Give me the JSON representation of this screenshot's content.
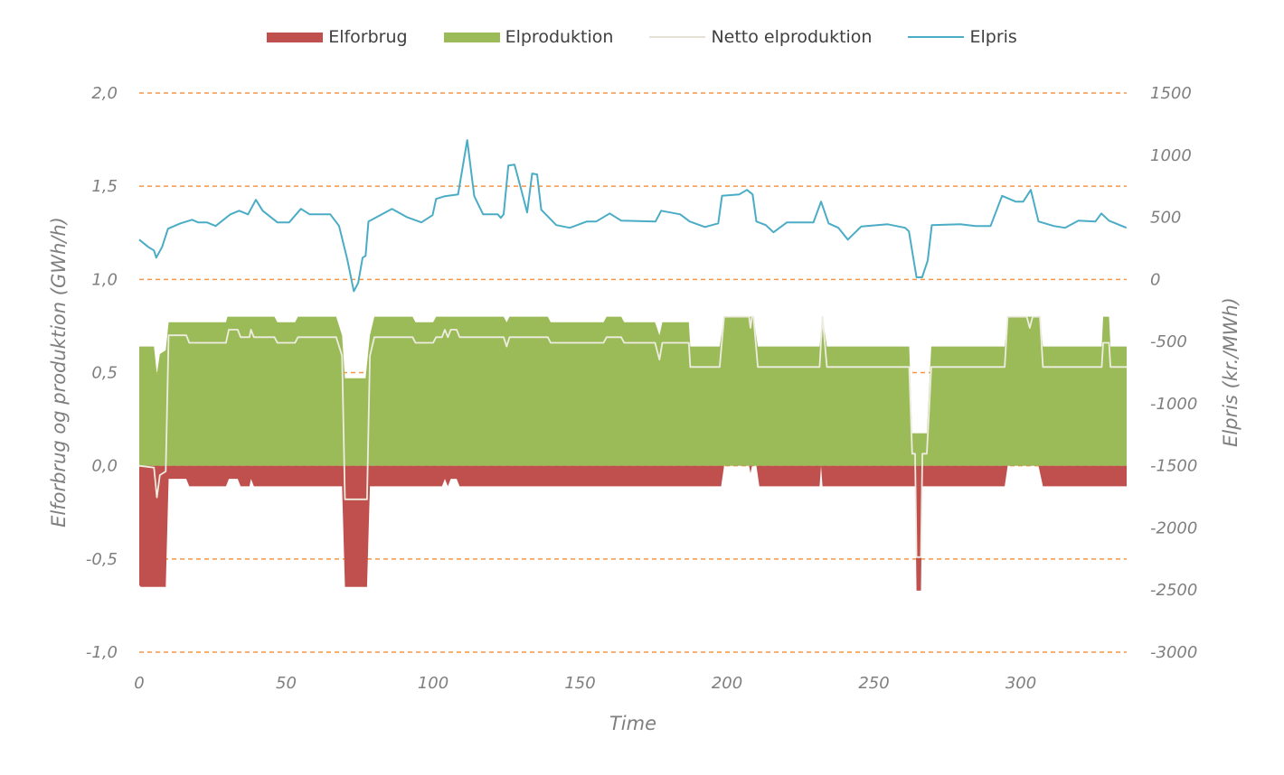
{
  "chart_data": {
    "type": "area",
    "xlabel": "Time",
    "ylabel": "Elforbrug og produktion (GWh/h)",
    "y2label": "Elpris (kr./MWh)",
    "xlim": [
      0,
      336
    ],
    "ylim": [
      -1.0,
      2.0
    ],
    "y2lim": [
      -3000,
      1500
    ],
    "x_ticks": [
      0,
      50,
      100,
      150,
      200,
      250,
      300
    ],
    "x_tick_labels": [
      "0",
      "50",
      "100",
      "150",
      "200",
      "250",
      "300"
    ],
    "y_ticks": [
      2.0,
      1.5,
      1.0,
      0.5,
      0.0,
      -0.5,
      -1.0
    ],
    "y_tick_labels": [
      "2,0",
      "1,5",
      "1,0",
      "0,5",
      "0,0",
      "-0,5",
      "-1,0"
    ],
    "y2_ticks": [
      1500,
      1000,
      500,
      0,
      -500,
      -1000,
      -1500,
      -2000,
      -2500,
      -3000
    ],
    "y2_tick_labels": [
      "1500",
      "1000",
      "500",
      "0",
      "-500",
      "-1000",
      "-1500",
      "-2000",
      "-2500",
      "-3000"
    ],
    "grid": true,
    "grid_color": "#f79646",
    "legend_position": "top",
    "series": [
      {
        "name": "Elforbrug",
        "kind": "area",
        "axis": "left",
        "color": "#c0504d",
        "points": [
          [
            0,
            -0.64
          ],
          [
            0.5,
            -0.65
          ],
          [
            9,
            -0.65
          ],
          [
            10,
            -0.07
          ],
          [
            16,
            -0.07
          ],
          [
            17,
            -0.11
          ],
          [
            29.5,
            -0.11
          ],
          [
            30.5,
            -0.07
          ],
          [
            33.5,
            -0.07
          ],
          [
            34.5,
            -0.11
          ],
          [
            37.5,
            -0.11
          ],
          [
            38,
            -0.07
          ],
          [
            39,
            -0.11
          ],
          [
            69,
            -0.11
          ],
          [
            70,
            -0.65
          ],
          [
            77.5,
            -0.65
          ],
          [
            78.5,
            -0.11
          ],
          [
            103,
            -0.11
          ],
          [
            104,
            -0.07
          ],
          [
            105,
            -0.11
          ],
          [
            106,
            -0.07
          ],
          [
            108,
            -0.07
          ],
          [
            109,
            -0.11
          ],
          [
            198,
            -0.11
          ],
          [
            199,
            0
          ],
          [
            207.5,
            0
          ],
          [
            208,
            -0.04
          ],
          [
            208.5,
            0
          ],
          [
            210,
            0
          ],
          [
            211,
            -0.11
          ],
          [
            231.5,
            -0.11
          ],
          [
            232,
            0
          ],
          [
            232.5,
            -0.11
          ],
          [
            264,
            -0.11
          ],
          [
            264.5,
            -0.67
          ],
          [
            266,
            -0.67
          ],
          [
            266.5,
            -0.11
          ],
          [
            294.5,
            -0.11
          ],
          [
            295.5,
            0
          ],
          [
            306,
            0
          ],
          [
            307.5,
            -0.11
          ],
          [
            336,
            -0.11
          ]
        ]
      },
      {
        "name": "Elproduktion",
        "kind": "area",
        "axis": "left",
        "color": "#9bbb59",
        "points": [
          [
            0,
            0.64
          ],
          [
            5,
            0.64
          ],
          [
            6,
            0.49
          ],
          [
            7,
            0.6
          ],
          [
            9,
            0.62
          ],
          [
            10,
            0.77
          ],
          [
            29.5,
            0.77
          ],
          [
            30,
            0.8
          ],
          [
            46,
            0.8
          ],
          [
            47,
            0.77
          ],
          [
            53,
            0.77
          ],
          [
            54,
            0.8
          ],
          [
            67,
            0.8
          ],
          [
            69,
            0.7
          ],
          [
            70,
            0.47
          ],
          [
            77,
            0.47
          ],
          [
            78.5,
            0.7
          ],
          [
            80,
            0.8
          ],
          [
            93,
            0.8
          ],
          [
            94,
            0.77
          ],
          [
            100,
            0.77
          ],
          [
            101,
            0.8
          ],
          [
            124,
            0.8
          ],
          [
            125,
            0.77
          ],
          [
            126,
            0.8
          ],
          [
            139,
            0.8
          ],
          [
            140,
            0.77
          ],
          [
            158,
            0.77
          ],
          [
            159,
            0.8
          ],
          [
            164,
            0.8
          ],
          [
            165,
            0.77
          ],
          [
            175.5,
            0.77
          ],
          [
            177,
            0.7
          ],
          [
            178,
            0.77
          ],
          [
            187,
            0.77
          ],
          [
            187.5,
            0.64
          ],
          [
            197.5,
            0.64
          ],
          [
            199,
            0.8
          ],
          [
            209,
            0.8
          ],
          [
            210.5,
            0.64
          ],
          [
            231.5,
            0.64
          ],
          [
            232.5,
            0.8
          ],
          [
            234,
            0.64
          ],
          [
            262,
            0.64
          ],
          [
            263,
            0.175
          ],
          [
            268,
            0.175
          ],
          [
            269.5,
            0.64
          ],
          [
            294.5,
            0.64
          ],
          [
            295.5,
            0.8
          ],
          [
            306.5,
            0.8
          ],
          [
            307.5,
            0.64
          ],
          [
            327.5,
            0.64
          ],
          [
            328,
            0.8
          ],
          [
            330,
            0.8
          ],
          [
            330.5,
            0.64
          ],
          [
            336,
            0.64
          ]
        ]
      },
      {
        "name": "Netto elproduktion",
        "kind": "line",
        "axis": "left",
        "color": "#eeece1",
        "points": [
          [
            0,
            0
          ],
          [
            5,
            -0.01
          ],
          [
            6,
            -0.17
          ],
          [
            7,
            -0.05
          ],
          [
            9,
            -0.03
          ],
          [
            10,
            0.7
          ],
          [
            16,
            0.7
          ],
          [
            17,
            0.66
          ],
          [
            29.5,
            0.66
          ],
          [
            30.5,
            0.73
          ],
          [
            33.5,
            0.73
          ],
          [
            34.5,
            0.69
          ],
          [
            37.5,
            0.69
          ],
          [
            38,
            0.73
          ],
          [
            39,
            0.69
          ],
          [
            46,
            0.69
          ],
          [
            47,
            0.66
          ],
          [
            53,
            0.66
          ],
          [
            54,
            0.69
          ],
          [
            67,
            0.69
          ],
          [
            69,
            0.59
          ],
          [
            70,
            -0.18
          ],
          [
            77.5,
            -0.18
          ],
          [
            78.5,
            0.59
          ],
          [
            80,
            0.69
          ],
          [
            93,
            0.69
          ],
          [
            94,
            0.66
          ],
          [
            100,
            0.66
          ],
          [
            101,
            0.69
          ],
          [
            103,
            0.69
          ],
          [
            104,
            0.73
          ],
          [
            105,
            0.69
          ],
          [
            106,
            0.73
          ],
          [
            108,
            0.73
          ],
          [
            109,
            0.69
          ],
          [
            124,
            0.69
          ],
          [
            125,
            0.64
          ],
          [
            126,
            0.69
          ],
          [
            139,
            0.69
          ],
          [
            140,
            0.66
          ],
          [
            158,
            0.66
          ],
          [
            159,
            0.69
          ],
          [
            164,
            0.69
          ],
          [
            165,
            0.66
          ],
          [
            175.5,
            0.66
          ],
          [
            177,
            0.57
          ],
          [
            178,
            0.66
          ],
          [
            187,
            0.66
          ],
          [
            187.5,
            0.53
          ],
          [
            197.5,
            0.53
          ],
          [
            199,
            0.8
          ],
          [
            207.5,
            0.8
          ],
          [
            208,
            0.74
          ],
          [
            208.5,
            0.8
          ],
          [
            209,
            0.8
          ],
          [
            210.5,
            0.53
          ],
          [
            231.5,
            0.53
          ],
          [
            232.5,
            0.8
          ],
          [
            234,
            0.53
          ],
          [
            262,
            0.53
          ],
          [
            263,
            0.065
          ],
          [
            264,
            0.065
          ],
          [
            264.5,
            -0.49
          ],
          [
            266,
            -0.49
          ],
          [
            266.5,
            0.065
          ],
          [
            268,
            0.065
          ],
          [
            269.5,
            0.53
          ],
          [
            294.5,
            0.53
          ],
          [
            295.5,
            0.8
          ],
          [
            302,
            0.8
          ],
          [
            303,
            0.74
          ],
          [
            304,
            0.8
          ],
          [
            306.5,
            0.8
          ],
          [
            307.5,
            0.53
          ],
          [
            327.5,
            0.53
          ],
          [
            328,
            0.66
          ],
          [
            330,
            0.66
          ],
          [
            330.5,
            0.53
          ],
          [
            336,
            0.53
          ]
        ]
      },
      {
        "name": "Elpris",
        "kind": "line",
        "axis": "right",
        "color": "#4bacc6",
        "points": [
          [
            0,
            320
          ],
          [
            3,
            262
          ],
          [
            5,
            233
          ],
          [
            5.8,
            175
          ],
          [
            7.8,
            262
          ],
          [
            9.8,
            408
          ],
          [
            14,
            451
          ],
          [
            18,
            480
          ],
          [
            20,
            459
          ],
          [
            23,
            459
          ],
          [
            26,
            430
          ],
          [
            31,
            524
          ],
          [
            34,
            553
          ],
          [
            37,
            524
          ],
          [
            39.7,
            641
          ],
          [
            42,
            553
          ],
          [
            47,
            459
          ],
          [
            51,
            459
          ],
          [
            55,
            568
          ],
          [
            58,
            524
          ],
          [
            65,
            524
          ],
          [
            68,
            430
          ],
          [
            70.8,
            160
          ],
          [
            73,
            -95
          ],
          [
            74.5,
            -29
          ],
          [
            76,
            175
          ],
          [
            77,
            189
          ],
          [
            78,
            466
          ],
          [
            82,
            517
          ],
          [
            86,
            568
          ],
          [
            91,
            502
          ],
          [
            96,
            459
          ],
          [
            99.8,
            517
          ],
          [
            101,
            648
          ],
          [
            104,
            670
          ],
          [
            108.5,
            684
          ],
          [
            111.6,
            1121
          ],
          [
            114,
            670
          ],
          [
            117,
            524
          ],
          [
            122,
            524
          ],
          [
            123,
            495
          ],
          [
            124,
            524
          ],
          [
            125.6,
            917
          ],
          [
            127.7,
            924
          ],
          [
            130,
            721
          ],
          [
            132,
            539
          ],
          [
            133.7,
            852
          ],
          [
            135.4,
            845
          ],
          [
            136.8,
            561
          ],
          [
            141.9,
            437
          ],
          [
            146.5,
            415
          ],
          [
            152.3,
            466
          ],
          [
            155.5,
            466
          ],
          [
            160.1,
            531
          ],
          [
            164,
            473
          ],
          [
            175.7,
            466
          ],
          [
            177.6,
            553
          ],
          [
            184.1,
            524
          ],
          [
            187.3,
            466
          ],
          [
            192.5,
            422
          ],
          [
            197,
            451
          ],
          [
            198.3,
            673
          ],
          [
            204.2,
            684
          ],
          [
            206.8,
            721
          ],
          [
            208.7,
            684
          ],
          [
            210,
            466
          ],
          [
            213.2,
            437
          ],
          [
            215.8,
            379
          ],
          [
            220.4,
            459
          ],
          [
            229.4,
            459
          ],
          [
            232,
            626
          ],
          [
            234.6,
            451
          ],
          [
            237.9,
            415
          ],
          [
            241.1,
            320
          ],
          [
            245.7,
            426
          ],
          [
            254.7,
            444
          ],
          [
            260.6,
            415
          ],
          [
            261.9,
            386
          ],
          [
            264.5,
            17
          ],
          [
            266.4,
            17
          ],
          [
            268.3,
            153
          ],
          [
            269.7,
            437
          ],
          [
            279.4,
            444
          ],
          [
            284.6,
            430
          ],
          [
            289.7,
            430
          ],
          [
            293.6,
            673
          ],
          [
            298.2,
            626
          ],
          [
            300.8,
            626
          ],
          [
            303.4,
            721
          ],
          [
            306,
            466
          ],
          [
            311.2,
            430
          ],
          [
            315,
            415
          ],
          [
            319.6,
            473
          ],
          [
            325.4,
            466
          ],
          [
            327.4,
            531
          ],
          [
            330,
            473
          ],
          [
            335.9,
            415
          ]
        ]
      }
    ]
  }
}
